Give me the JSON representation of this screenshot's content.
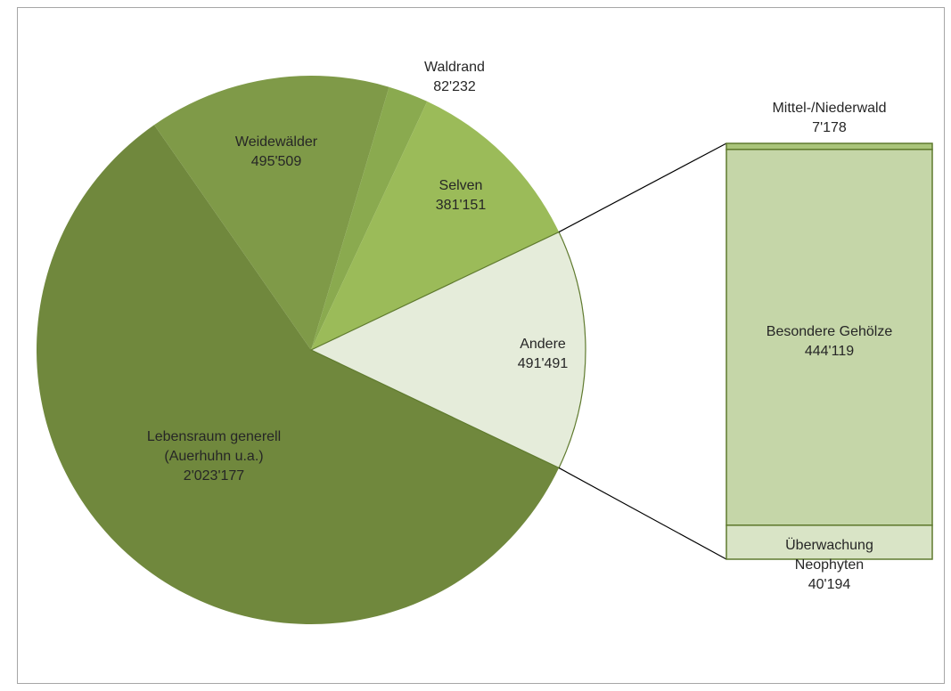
{
  "chart_data": {
    "type": "pie",
    "title": "",
    "slices": [
      {
        "label": "Lebensraum generell (Auerhuhn u.a.)",
        "label_lines": [
          "Lebensraum generell",
          "(Auerhuhn u.a.)"
        ],
        "value_text": "2'023'177",
        "value": 2023177,
        "color": "#70883d"
      },
      {
        "label": "Weidewälder",
        "label_lines": [
          "Weidewälder"
        ],
        "value_text": "495'509",
        "value": 495509,
        "color": "#7f9a48"
      },
      {
        "label": "Waldrand",
        "label_lines": [
          "Waldrand"
        ],
        "value_text": "82'232",
        "value": 82232,
        "color": "#8aaa4f"
      },
      {
        "label": "Selven",
        "label_lines": [
          "Selven"
        ],
        "value_text": "381'151",
        "value": 381151,
        "color": "#9bbb59"
      },
      {
        "label": "Andere",
        "label_lines": [
          "Andere"
        ],
        "value_text": "491'491",
        "value": 491491,
        "color": "#e5ecda",
        "exploded": true
      }
    ],
    "breakdown": {
      "of": "Andere",
      "type": "stacked_bar",
      "segments": [
        {
          "label": "Mittel-/Niederwald",
          "label_lines": [
            "Mittel-/Niederwald"
          ],
          "value_text": "7'178",
          "value": 7178,
          "color": "#a9c47a"
        },
        {
          "label": "Besondere Gehölze",
          "label_lines": [
            "Besondere Gehölze"
          ],
          "value_text": "444'119",
          "value": 444119,
          "color": "#c5d6a8"
        },
        {
          "label": "Überwachung Neophyten",
          "label_lines": [
            "Überwachung",
            "Neophyten"
          ],
          "value_text": "40'194",
          "value": 40194,
          "color": "#d9e4c6"
        }
      ]
    },
    "outline_color": "#5f7a2e"
  }
}
